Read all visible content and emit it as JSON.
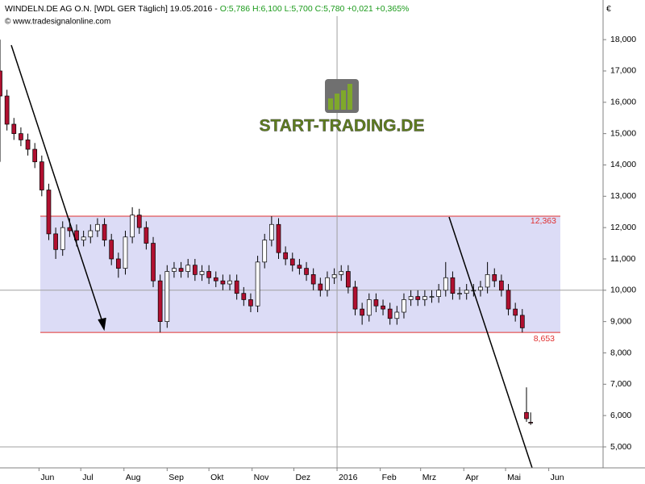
{
  "chart_data": {
    "type": "candlestick",
    "title": "WINDELN.DE AG O.N. [WDL GER  Täglich] 19.05.2016 - ",
    "quote": "O:5,786 H:6,100 L:5,700 C:5,780 +0,021 +0,365%",
    "source": "© www.tradesignalonline.com",
    "currency": "€",
    "logo": "START-TRADING.DE",
    "up_color": "#ffffff",
    "down_color": "#b01030",
    "band_color": "#dcdcf6",
    "band_line_color": "#e03030",
    "band": {
      "upper": {
        "value": 12363,
        "label": "12,363"
      },
      "lower": {
        "value": 8653,
        "label": "8,653"
      }
    },
    "xlim": [
      -28,
      405
    ],
    "ylim": [
      4330,
      18750
    ],
    "xticks": [
      {
        "value": 0,
        "label": "Jun"
      },
      {
        "value": 30,
        "label": "Jul"
      },
      {
        "value": 61,
        "label": "Aug"
      },
      {
        "value": 92,
        "label": "Sep"
      },
      {
        "value": 122,
        "label": "Okt"
      },
      {
        "value": 153,
        "label": "Nov"
      },
      {
        "value": 183,
        "label": "Dez"
      },
      {
        "value": 214,
        "label": "2016"
      },
      {
        "value": 245,
        "label": "Feb"
      },
      {
        "value": 274,
        "label": "Mrz"
      },
      {
        "value": 305,
        "label": "Apr"
      },
      {
        "value": 335,
        "label": "Mai"
      },
      {
        "value": 366,
        "label": "Jun"
      }
    ],
    "yticks": [
      {
        "value": 5000,
        "label": "5,000"
      },
      {
        "value": 6000,
        "label": "6,000"
      },
      {
        "value": 7000,
        "label": "7,000"
      },
      {
        "value": 8000,
        "label": "8,000"
      },
      {
        "value": 9000,
        "label": "9,000"
      },
      {
        "value": 10000,
        "label": "10,000"
      },
      {
        "value": 11000,
        "label": "11,000"
      },
      {
        "value": 12000,
        "label": "12,000"
      },
      {
        "value": 13000,
        "label": "13,000"
      },
      {
        "value": 14000,
        "label": "14,000"
      },
      {
        "value": 15000,
        "label": "15,000"
      },
      {
        "value": 16000,
        "label": "16,000"
      },
      {
        "value": 17000,
        "label": "17,000"
      },
      {
        "value": 18000,
        "label": "18,000"
      }
    ],
    "ygrid": [
      5000,
      10000
    ],
    "xgrid": [
      214
    ],
    "x": [
      -28,
      -23,
      -18,
      -13,
      -8,
      -3,
      2,
      7,
      12,
      17,
      22,
      27,
      32,
      37,
      42,
      47,
      52,
      57,
      62,
      67,
      72,
      77,
      82,
      87,
      92,
      97,
      102,
      107,
      112,
      117,
      122,
      127,
      132,
      137,
      142,
      147,
      152,
      157,
      162,
      167,
      172,
      177,
      182,
      187,
      192,
      197,
      202,
      207,
      212,
      217,
      222,
      227,
      232,
      237,
      242,
      247,
      252,
      257,
      262,
      267,
      272,
      277,
      282,
      287,
      292,
      297,
      302,
      307,
      312,
      317,
      322,
      327,
      332,
      337,
      342,
      347,
      350,
      353
    ],
    "open": [
      17000,
      16200,
      15300,
      15000,
      14800,
      14500,
      14100,
      13200,
      11800,
      11300,
      12000,
      11900,
      11600,
      11700,
      11900,
      12100,
      11600,
      11000,
      10700,
      11700,
      12400,
      12000,
      11500,
      10300,
      9000,
      10600,
      10700,
      10600,
      10800,
      10500,
      10600,
      10400,
      10300,
      10200,
      10300,
      9900,
      9700,
      9500,
      10900,
      11600,
      12100,
      11200,
      11000,
      10800,
      10700,
      10500,
      10200,
      10000,
      10400,
      10500,
      10600,
      10100,
      9400,
      9200,
      9700,
      9500,
      9400,
      9100,
      9300,
      9700,
      9800,
      9700,
      9800,
      9800,
      10000,
      10400,
      9900,
      9900,
      10000,
      10000,
      10100,
      10500,
      10300,
      10000,
      9400,
      9200,
      6100,
      5786
    ],
    "high": [
      18000,
      16400,
      15500,
      15200,
      15000,
      14700,
      14300,
      13400,
      12000,
      12200,
      12300,
      12100,
      11900,
      12100,
      12300,
      12300,
      11800,
      11200,
      11900,
      12650,
      12600,
      12200,
      11700,
      10500,
      10800,
      10900,
      10900,
      11000,
      11000,
      10800,
      10800,
      10600,
      10500,
      10500,
      10500,
      10100,
      9900,
      11100,
      11800,
      12363,
      12300,
      11400,
      11200,
      11000,
      10900,
      10700,
      10400,
      10600,
      10700,
      10800,
      10800,
      10300,
      9600,
      9900,
      9900,
      9700,
      9600,
      9500,
      9900,
      10000,
      10000,
      10000,
      10000,
      10200,
      10900,
      10600,
      10100,
      10200,
      10200,
      10300,
      10900,
      10700,
      10500,
      10200,
      9600,
      9400,
      6900,
      6100
    ],
    "low": [
      14100,
      15100,
      14800,
      14600,
      14300,
      13900,
      13000,
      11600,
      11000,
      11100,
      11700,
      11400,
      11400,
      11500,
      11700,
      11400,
      10800,
      10400,
      10500,
      11500,
      11800,
      11300,
      10100,
      8653,
      8800,
      10400,
      10400,
      10400,
      10300,
      10300,
      10200,
      10100,
      10000,
      10000,
      9700,
      9500,
      9300,
      9300,
      10700,
      11400,
      11000,
      10800,
      10600,
      10500,
      10300,
      10000,
      9800,
      9800,
      10200,
      10300,
      9900,
      9200,
      8900,
      9000,
      9300,
      9200,
      8900,
      8900,
      9100,
      9500,
      9500,
      9500,
      9600,
      9600,
      9800,
      9700,
      9700,
      9700,
      9800,
      9800,
      9900,
      10100,
      9800,
      9200,
      9000,
      8653,
      5800,
      5700
    ],
    "close": [
      16200,
      15300,
      15000,
      14800,
      14500,
      14100,
      13200,
      11800,
      11300,
      12000,
      11900,
      11600,
      11700,
      11900,
      12100,
      11600,
      11000,
      10700,
      11700,
      12400,
      12000,
      11500,
      10300,
      9000,
      10600,
      10700,
      10600,
      10800,
      10500,
      10600,
      10400,
      10300,
      10200,
      10300,
      9900,
      9700,
      9500,
      10900,
      11600,
      12100,
      11200,
      11000,
      10800,
      10700,
      10500,
      10200,
      10000,
      10400,
      10500,
      10600,
      10100,
      9400,
      9200,
      9700,
      9500,
      9400,
      9100,
      9300,
      9700,
      9800,
      9700,
      9800,
      9800,
      10000,
      10400,
      9900,
      9900,
      10000,
      10000,
      10100,
      10500,
      10300,
      10000,
      9400,
      9200,
      8800,
      5900,
      5780
    ]
  }
}
